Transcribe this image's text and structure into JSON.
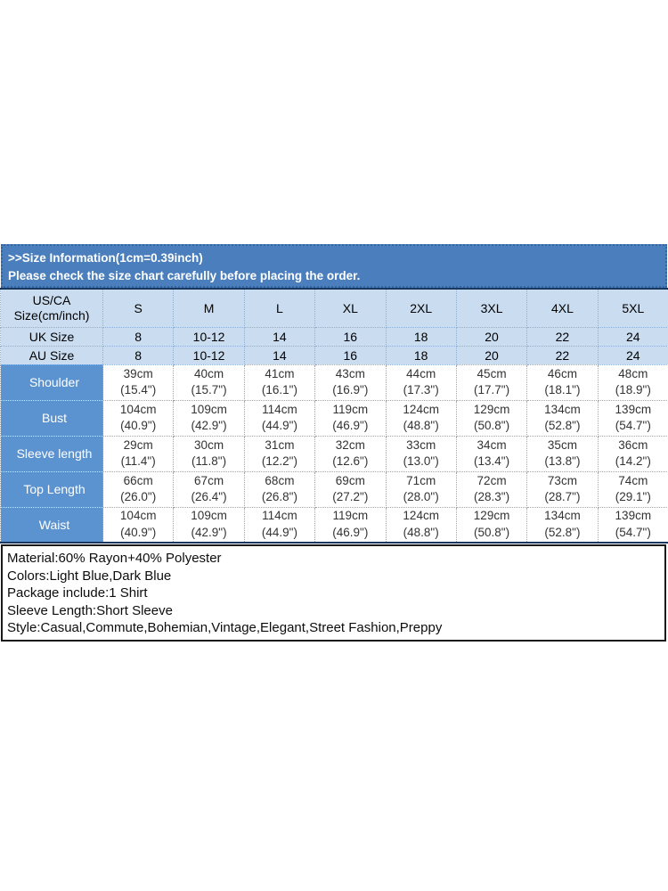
{
  "banner": {
    "line1": ">>Size Information(1cm=0.39inch)",
    "line2": "Please check the size chart carefully before placing the order."
  },
  "size_table": {
    "corner": [
      "US/CA",
      "Size(cm/inch)"
    ],
    "size_labels": [
      "S",
      "M",
      "L",
      "XL",
      "2XL",
      "3XL",
      "4XL",
      "5XL"
    ],
    "uk": {
      "label": "UK Size",
      "values": [
        "8",
        "10-12",
        "14",
        "16",
        "18",
        "20",
        "22",
        "24"
      ]
    },
    "au": {
      "label": "AU Size",
      "values": [
        "8",
        "10-12",
        "14",
        "16",
        "18",
        "20",
        "22",
        "24"
      ]
    },
    "measurements": [
      {
        "label": "Shoulder",
        "cm": [
          "39cm",
          "40cm",
          "41cm",
          "43cm",
          "44cm",
          "45cm",
          "46cm",
          "48cm"
        ],
        "inch": [
          "(15.4\")",
          "(15.7\")",
          "(16.1\")",
          "(16.9\")",
          "(17.3\")",
          "(17.7\")",
          "(18.1\")",
          "(18.9\")"
        ]
      },
      {
        "label": "Bust",
        "cm": [
          "104cm",
          "109cm",
          "114cm",
          "119cm",
          "124cm",
          "129cm",
          "134cm",
          "139cm"
        ],
        "inch": [
          "(40.9\")",
          "(42.9\")",
          "(44.9\")",
          "(46.9\")",
          "(48.8\")",
          "(50.8\")",
          "(52.8\")",
          "(54.7\")"
        ]
      },
      {
        "label": "Sleeve length",
        "cm": [
          "29cm",
          "30cm",
          "31cm",
          "32cm",
          "33cm",
          "34cm",
          "35cm",
          "36cm"
        ],
        "inch": [
          "(11.4\")",
          "(11.8\")",
          "(12.2\")",
          "(12.6\")",
          "(13.0\")",
          "(13.4\")",
          "(13.8\")",
          "(14.2\")"
        ]
      },
      {
        "label": "Top Length",
        "cm": [
          "66cm",
          "67cm",
          "68cm",
          "69cm",
          "71cm",
          "72cm",
          "73cm",
          "74cm"
        ],
        "inch": [
          "(26.0\")",
          "(26.4\")",
          "(26.8\")",
          "(27.2\")",
          "(28.0\")",
          "(28.3\")",
          "(28.7\")",
          "(29.1\")"
        ]
      },
      {
        "label": "Waist",
        "cm": [
          "104cm",
          "109cm",
          "114cm",
          "119cm",
          "124cm",
          "129cm",
          "134cm",
          "139cm"
        ],
        "inch": [
          "(40.9\")",
          "(42.9\")",
          "(44.9\")",
          "(46.9\")",
          "(48.8\")",
          "(50.8\")",
          "(52.8\")",
          "(54.7\")"
        ]
      }
    ]
  },
  "details": {
    "lines": [
      "Material:60% Rayon+40% Polyester",
      "Colors:Light Blue,Dark Blue",
      "Package include:1 Shirt",
      "Sleeve Length:Short Sleeve",
      "Style:Casual,Commute,Bohemian,Vintage,Elegant,Street Fashion,Preppy"
    ]
  },
  "colors": {
    "banner_bg": "#4a7ebc",
    "banner_border": "#35659f",
    "header_bg": "#cadcf0",
    "label_bg": "#5b92d0",
    "table_dark_line": "#17375e",
    "box_border": "#1a1a1a"
  }
}
